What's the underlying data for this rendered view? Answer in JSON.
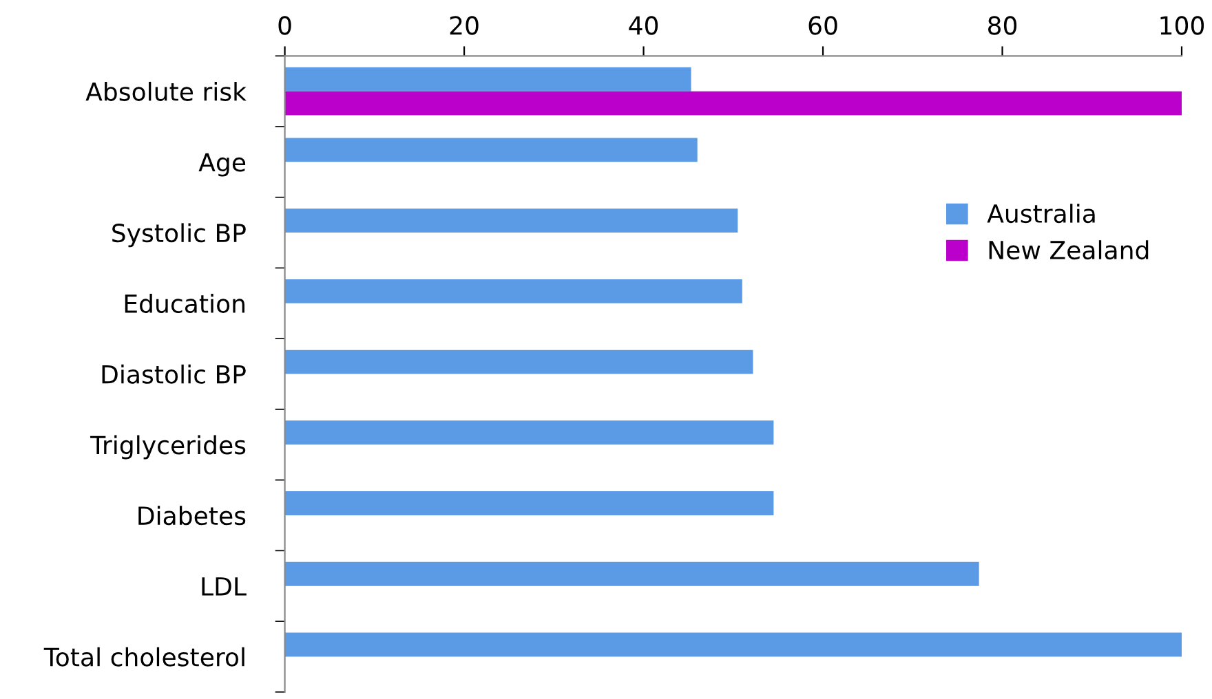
{
  "chart_data": {
    "type": "bar",
    "orientation": "horizontal",
    "categories": [
      "Absolute risk",
      "Age",
      "Systolic BP",
      "Education",
      "Diastolic BP",
      "Triglycerides",
      "Diabetes",
      "LDL",
      "Total cholesterol"
    ],
    "series": [
      {
        "name": "Australia",
        "color": "#5b9be6",
        "values": [
          45.3,
          46,
          50.5,
          51,
          52.2,
          54.5,
          54.5,
          77.4,
          100
        ]
      },
      {
        "name": "New Zealand",
        "color": "#bb00cc",
        "values": [
          100,
          null,
          null,
          null,
          null,
          null,
          null,
          null,
          null
        ]
      }
    ],
    "xlim": [
      0,
      100
    ],
    "xticks": [
      0,
      20,
      40,
      60,
      80,
      100
    ],
    "grid": false,
    "legend": "right"
  }
}
